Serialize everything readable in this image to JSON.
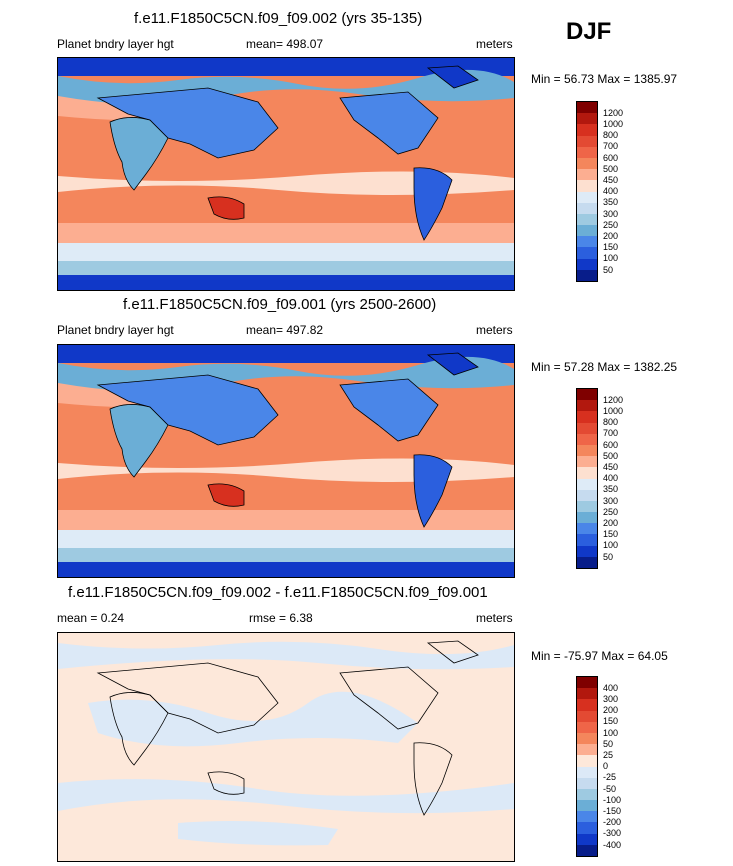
{
  "season": "DJF",
  "panels": [
    {
      "title": "f.e11.F1850C5CN.f09_f09.002 (yrs 35-135)",
      "left_label": "Planet bndry layer hgt",
      "center_label": "mean= 498.07",
      "units": "meters",
      "minmax": "Min =  56.73 Max = 1385.97"
    },
    {
      "title": "f.e11.F1850C5CN.f09_f09.001 (yrs 2500-2600)",
      "left_label": "Planet bndry layer hgt",
      "center_label": "mean= 497.82",
      "units": "meters",
      "minmax": "Min =  57.28 Max = 1382.25"
    },
    {
      "title": "f.e11.F1850C5CN.f09_f09.002 - f.e11.F1850C5CN.f09_f09.001",
      "left_label": "mean =   0.24",
      "center_label": "rmse =   6.38",
      "units": "meters",
      "minmax": "Min = -75.97 Max =  64.05"
    }
  ],
  "colorbar_levels": [
    "1200",
    "1000",
    "800",
    "700",
    "600",
    "500",
    "450",
    "400",
    "350",
    "300",
    "250",
    "200",
    "150",
    "100",
    "50"
  ],
  "diff_levels": [
    "400",
    "300",
    "200",
    "150",
    "100",
    "50",
    "25",
    "0",
    "-25",
    "-50",
    "-100",
    "-150",
    "-200",
    "-300",
    "-400"
  ],
  "colors": {
    "scale": [
      "#7f0000",
      "#b2180e",
      "#d7301f",
      "#e34a33",
      "#ef6548",
      "#f4865c",
      "#fcae91",
      "#fde0d0",
      "#deebf7",
      "#c6dbef",
      "#9ecae1",
      "#6baed6",
      "#4a86e8",
      "#2b5fde",
      "#1038c8",
      "#081d8a"
    ],
    "diff": [
      "#7f0000",
      "#b2180e",
      "#d7301f",
      "#e34a33",
      "#ef6548",
      "#f4865c",
      "#fcae91",
      "#fde8da",
      "#dce9f7",
      "#c6dbef",
      "#9ecae1",
      "#6baed6",
      "#4a86e8",
      "#2b5fde",
      "#1038c8",
      "#081d8a"
    ]
  }
}
